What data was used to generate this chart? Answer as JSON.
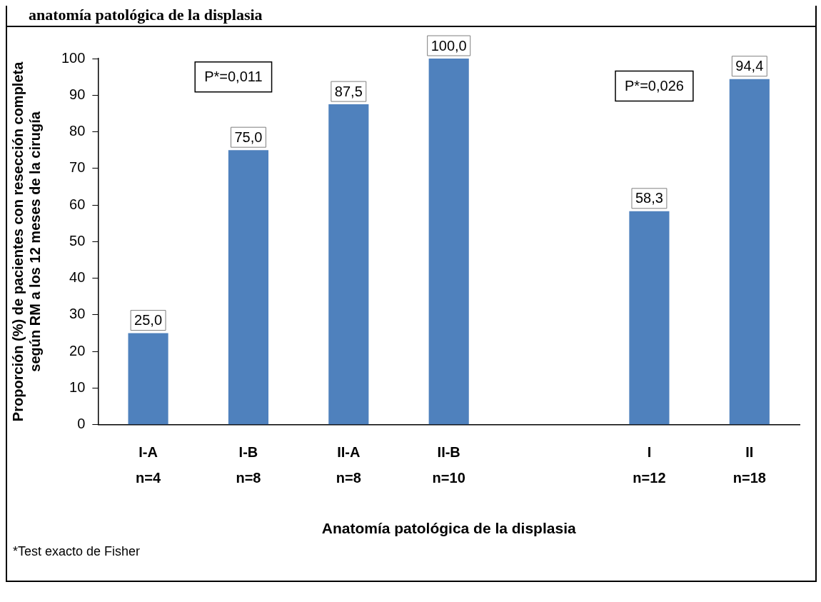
{
  "chart_data": {
    "type": "bar",
    "title": "anatomía patológica de la displasia",
    "categories": [
      "I-A\nn=4",
      "I-B\nn=8",
      "II-A\nn=8",
      "II-B\nn=10",
      null,
      "I\nn=12",
      "II\nn=18"
    ],
    "values": [
      25.0,
      75.0,
      87.5,
      100.0,
      null,
      58.3,
      94.4
    ],
    "value_labels": [
      "25,0",
      "75,0",
      "87,5",
      "100,0",
      null,
      "58,3",
      "94,4"
    ],
    "color": "#4f81bd",
    "ylim": [
      0,
      100
    ],
    "yticks": [
      0,
      10,
      20,
      30,
      40,
      50,
      60,
      70,
      80,
      90,
      100
    ],
    "xlabel": "Anatomía patológica de la displasia",
    "ylabel": "Proporción (%) de pacientes con resección completa\nsegún RM a los 12 meses de la cirugía",
    "annotations": [
      "P*=0,011",
      "P*=0,026",
      "*Test exacto de Fisher"
    ],
    "grid": false,
    "legend": false
  }
}
